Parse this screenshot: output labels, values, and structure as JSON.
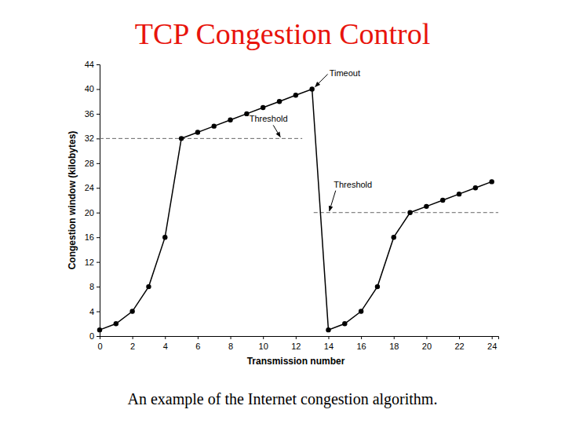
{
  "chart_data": {
    "type": "line",
    "title": "TCP Congestion Control",
    "caption": "An example of the Internet congestion algorithm.",
    "x_label": "Transmission number",
    "y_label": "Congestion window (kilobytes)",
    "x": [
      0,
      1,
      2,
      3,
      4,
      5,
      6,
      7,
      8,
      9,
      10,
      11,
      12,
      13,
      14,
      15,
      16,
      17,
      18,
      19,
      20,
      21,
      22,
      23,
      24
    ],
    "series": [
      {
        "values": [
          1,
          2,
          4,
          8,
          16,
          32,
          33,
          34,
          35,
          36,
          37,
          38,
          39,
          40,
          1,
          2,
          4,
          8,
          16,
          20,
          21,
          22,
          23,
          24,
          25
        ],
        "color": "#000000",
        "marker": "circle",
        "line_style": "solid"
      }
    ],
    "thresholds": [
      {
        "label": "Threshold",
        "value": 32,
        "x": [
          0,
          12.4
        ]
      },
      {
        "label": "Threshold",
        "value": 20,
        "x": [
          13.1,
          24.4
        ]
      }
    ],
    "annotations": [
      {
        "text": "Timeout",
        "x": 13,
        "y": 40
      }
    ],
    "xlim": [
      0,
      24.4
    ],
    "xticks": [
      0,
      2,
      4,
      6,
      8,
      10,
      12,
      14,
      16,
      18,
      20,
      22,
      24
    ],
    "ylim": [
      0,
      44
    ],
    "yticks": [
      0,
      4,
      8,
      12,
      16,
      20,
      24,
      28,
      32,
      36,
      40,
      44
    ],
    "grid": false
  }
}
